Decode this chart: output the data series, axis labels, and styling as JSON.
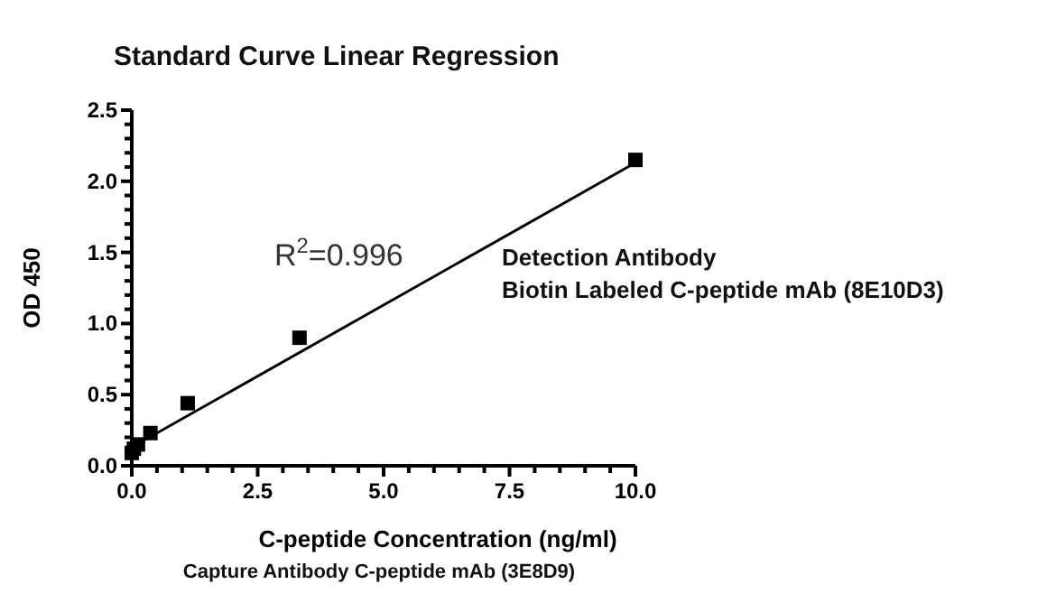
{
  "chart_data": {
    "type": "scatter",
    "title": "Standard Curve Linear Regression",
    "xlabel": "C-peptide Concentration (ng/ml)",
    "ylabel": "OD 450",
    "series": [
      {
        "color": "#000000",
        "marker": "square",
        "x": [
          0,
          0.041,
          0.123,
          0.37,
          1.11,
          3.33,
          10
        ],
        "values": [
          0.09,
          0.12,
          0.15,
          0.23,
          0.44,
          0.9,
          2.15
        ]
      },
      {
        "type": "line",
        "color": "#000000",
        "marker": "none",
        "line_style": "solid",
        "x": [
          0,
          10
        ],
        "values": [
          0.13,
          2.13
        ]
      }
    ],
    "xlim": [
      0,
      10
    ],
    "ylim": [
      0,
      2.5
    ],
    "xticks": [
      {
        "value": 0,
        "label": "0.0"
      },
      {
        "value": 0.5,
        "label": null
      },
      {
        "value": 1,
        "label": null
      },
      {
        "value": 1.5,
        "label": null
      },
      {
        "value": 2,
        "label": null
      },
      {
        "value": 2.5,
        "label": "2.5"
      },
      {
        "value": 3,
        "label": null
      },
      {
        "value": 3.5,
        "label": null
      },
      {
        "value": 4,
        "label": null
      },
      {
        "value": 4.5,
        "label": null
      },
      {
        "value": 5,
        "label": "5.0"
      },
      {
        "value": 5.5,
        "label": null
      },
      {
        "value": 6,
        "label": null
      },
      {
        "value": 6.5,
        "label": null
      },
      {
        "value": 7,
        "label": null
      },
      {
        "value": 7.5,
        "label": "7.5"
      },
      {
        "value": 8,
        "label": null
      },
      {
        "value": 8.5,
        "label": null
      },
      {
        "value": 9,
        "label": null
      },
      {
        "value": 9.5,
        "label": null
      },
      {
        "value": 10,
        "label": "10.0"
      }
    ],
    "yticks": [
      {
        "value": 0,
        "label": "0.0"
      },
      {
        "value": 0.1,
        "label": null
      },
      {
        "value": 0.2,
        "label": null
      },
      {
        "value": 0.3,
        "label": null
      },
      {
        "value": 0.4,
        "label": null
      },
      {
        "value": 0.5,
        "label": "0.5"
      },
      {
        "value": 0.6,
        "label": null
      },
      {
        "value": 0.7,
        "label": null
      },
      {
        "value": 0.8,
        "label": null
      },
      {
        "value": 0.9,
        "label": null
      },
      {
        "value": 1,
        "label": "1.0"
      },
      {
        "value": 1.1,
        "label": null
      },
      {
        "value": 1.2,
        "label": null
      },
      {
        "value": 1.3,
        "label": null
      },
      {
        "value": 1.4,
        "label": null
      },
      {
        "value": 1.5,
        "label": "1.5"
      },
      {
        "value": 1.6,
        "label": null
      },
      {
        "value": 1.7,
        "label": null
      },
      {
        "value": 1.8,
        "label": null
      },
      {
        "value": 1.9,
        "label": null
      },
      {
        "value": 2,
        "label": "2.0"
      },
      {
        "value": 2.1,
        "label": null
      },
      {
        "value": 2.2,
        "label": null
      },
      {
        "value": 2.3,
        "label": null
      },
      {
        "value": 2.4,
        "label": null
      },
      {
        "value": 2.5,
        "label": "2.5"
      }
    ],
    "grid": false,
    "annotations": [
      "R$^{2}$=0.996",
      "Detection Antibody",
      "Biotin Labeled C-peptide mAb (8E10D3)",
      "Capture Antibody C-peptide mAb (3E8D9)"
    ]
  }
}
